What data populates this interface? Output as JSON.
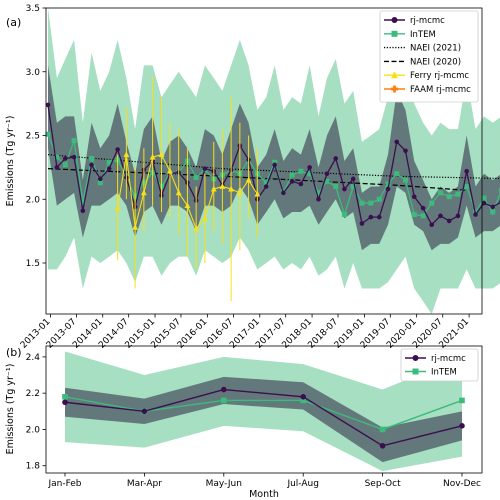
{
  "chart_data": [
    {
      "type": "line",
      "panel_label": "(a)",
      "xlabel": "",
      "ylabel": "Emissions (Tg yr⁻¹)",
      "ylim": [
        1.1,
        3.5
      ],
      "x_start": "2012-12-15",
      "x_step_months": 2,
      "x_tick_labels": [
        "2013-01",
        "2013-07",
        "2014-01",
        "2014-07",
        "2015-01",
        "2015-07",
        "2016-01",
        "2016-07",
        "2017-01",
        "2017-07",
        "2018-01",
        "2018-07",
        "2019-01",
        "2019-07",
        "2020-01",
        "2020-07",
        "2021-01"
      ],
      "y_ticks": [
        1.5,
        2.0,
        2.5,
        3.0,
        3.5
      ],
      "y_tick_labels": [
        "1.5",
        "2.0",
        "2.5",
        "3.0",
        "3.5"
      ],
      "legend_position": "top-right",
      "colors": {
        "rj_mcmc": "#3b0f4f",
        "intem": "#3dbb7c",
        "ferry": "#f7e017",
        "faam": "#ff7f0e",
        "outer_band": "#a6dfc2",
        "inner_band": "#5d6f74"
      },
      "series": [
        {
          "name": "rj-mcmc",
          "values": [
            2.74,
            2.25,
            2.32,
            2.33,
            1.91,
            2.27,
            2.16,
            2.24,
            2.39,
            2.17,
            1.94,
            2.23,
            2.3,
            2.03,
            2.2,
            2.21,
            2.13,
            1.99,
            2.24,
            2.22,
            2.11,
            2.23,
            2.42,
            2.31,
            2.0,
            2.1,
            2.27,
            2.05,
            2.14,
            2.12,
            2.25,
            2.0,
            2.2,
            2.32,
            2.08,
            2.16,
            1.81,
            1.86,
            1.86,
            2.08,
            2.45,
            2.38,
            2.02,
            1.93,
            1.8,
            1.87,
            1.83,
            1.87,
            2.22,
            1.88,
            1.97,
            1.94,
            1.98,
            1.92,
            1.85,
            1.85,
            1.67,
            1.78,
            1.99
          ]
        },
        {
          "name": "InTEM",
          "values": [
            2.51,
            2.33,
            2.27,
            2.46,
            1.98,
            2.32,
            2.13,
            2.29,
            2.31,
            2.17,
            2.02,
            2.13,
            2.21,
            2.1,
            2.2,
            2.21,
            2.3,
            2.17,
            2.23,
            2.16,
            2.19,
            2.23,
            2.2,
            2.31,
            2.2,
            2.13,
            2.29,
            2.06,
            2.19,
            2.22,
            2.2,
            2.05,
            2.14,
            2.1,
            1.88,
            2.1,
            1.97,
            1.97,
            2.0,
            2.12,
            2.2,
            2.15,
            1.88,
            1.87,
            1.97,
            2.05,
            2.02,
            2.04,
            2.1,
            1.9,
            2.01,
            1.9,
            2.07,
            1.98,
            1.9,
            1.89,
            1.8,
            1.79,
            2.19
          ]
        },
        {
          "name": "NAEI (2021)",
          "style": "dotted",
          "points": [
            [
              0,
              2.35
            ],
            [
              20,
              2.24
            ],
            [
              40,
              2.18
            ],
            [
              54,
              2.16
            ]
          ]
        },
        {
          "name": "NAEI (2020)",
          "style": "dashed",
          "points": [
            [
              0,
              2.24
            ],
            [
              20,
              2.18
            ],
            [
              40,
              2.11
            ],
            [
              48,
              2.07
            ]
          ]
        },
        {
          "name": "Ferry rj-mcmc",
          "points": [
            [
              8,
              1.93
            ],
            [
              9,
              2.35
            ],
            [
              10,
              1.78
            ],
            [
              11,
              2.05
            ],
            [
              12,
              2.33
            ],
            [
              13,
              2.35
            ],
            [
              14,
              2.22
            ],
            [
              15,
              2.05
            ],
            [
              16,
              1.95
            ],
            [
              17,
              1.77
            ],
            [
              18,
              1.85
            ],
            [
              19,
              2.08
            ],
            [
              20,
              2.1
            ],
            [
              21,
              2.08
            ],
            [
              22,
              2.05
            ],
            [
              23,
              2.15
            ],
            [
              24,
              2.04
            ]
          ],
          "err_lo": [
            1.52,
            2.0,
            1.3,
            1.75,
            1.95,
            1.9,
            1.85,
            1.72,
            1.55,
            1.45,
            1.5,
            1.75,
            1.65,
            1.2,
            1.6,
            1.85,
            1.7
          ],
          "err_hi": [
            2.35,
            2.72,
            2.25,
            2.4,
            2.96,
            2.8,
            2.6,
            2.55,
            2.4,
            2.1,
            2.2,
            2.45,
            2.55,
            2.8,
            2.6,
            2.5,
            2.4
          ]
        },
        {
          "name": "FAAM rj-mcmc",
          "points": []
        }
      ],
      "band_inner": {
        "lower": [
          2.4,
          1.95,
          2.0,
          2.05,
          1.7,
          1.95,
          1.95,
          2.0,
          2.05,
          1.95,
          1.7,
          1.9,
          1.95,
          1.8,
          1.95,
          1.95,
          1.9,
          1.75,
          1.95,
          1.95,
          1.9,
          1.95,
          2.1,
          2.0,
          1.8,
          1.9,
          2.0,
          1.85,
          1.9,
          1.9,
          1.95,
          1.8,
          1.9,
          2.0,
          1.85,
          1.9,
          1.6,
          1.65,
          1.65,
          1.8,
          2.1,
          2.05,
          1.8,
          1.75,
          1.6,
          1.65,
          1.65,
          1.7,
          1.95,
          1.7,
          1.75,
          1.75,
          1.8,
          1.75,
          1.65,
          1.65,
          1.5,
          1.6,
          1.75
        ],
        "upper": [
          3.05,
          2.6,
          2.65,
          2.65,
          2.15,
          2.6,
          2.4,
          2.5,
          2.75,
          2.45,
          2.2,
          2.55,
          2.65,
          2.3,
          2.45,
          2.5,
          2.4,
          2.25,
          2.55,
          2.5,
          2.35,
          2.55,
          2.75,
          2.6,
          2.25,
          2.35,
          2.55,
          2.3,
          2.4,
          2.35,
          2.55,
          2.25,
          2.5,
          2.65,
          2.3,
          2.4,
          2.05,
          2.1,
          2.1,
          2.35,
          2.85,
          2.7,
          2.3,
          2.15,
          2.0,
          2.1,
          2.05,
          2.1,
          2.5,
          2.1,
          2.2,
          2.15,
          2.2,
          2.1,
          2.05,
          2.05,
          1.85,
          1.95,
          2.25
        ]
      },
      "band_outer": {
        "lower": [
          1.45,
          1.45,
          1.55,
          1.7,
          1.3,
          1.55,
          1.5,
          1.55,
          1.6,
          1.5,
          1.35,
          1.55,
          1.55,
          1.4,
          1.5,
          1.55,
          1.55,
          1.4,
          1.6,
          1.55,
          1.5,
          1.55,
          1.7,
          1.6,
          1.45,
          1.5,
          1.55,
          1.45,
          1.5,
          1.45,
          1.55,
          1.4,
          1.45,
          1.55,
          1.3,
          1.5,
          1.3,
          1.3,
          1.3,
          1.35,
          1.45,
          1.55,
          1.3,
          1.2,
          1.1,
          1.3,
          1.3,
          1.3,
          1.45,
          1.3,
          1.3,
          1.3,
          1.35,
          1.3,
          1.3,
          1.3,
          1.3,
          1.35,
          1.45
        ],
        "upper": [
          3.5,
          2.95,
          3.1,
          3.25,
          2.6,
          3.15,
          2.85,
          3.0,
          3.25,
          2.95,
          2.55,
          3.05,
          3.05,
          2.8,
          2.9,
          3.0,
          2.9,
          2.8,
          3.05,
          2.95,
          2.85,
          3.05,
          3.25,
          3.05,
          2.7,
          2.8,
          3.05,
          2.7,
          2.8,
          2.75,
          3.05,
          2.65,
          2.95,
          3.1,
          2.75,
          2.85,
          2.45,
          2.5,
          2.55,
          2.8,
          3.25,
          3.2,
          2.75,
          2.6,
          2.5,
          2.6,
          2.55,
          2.55,
          2.95,
          2.55,
          2.65,
          2.6,
          2.65,
          2.6,
          2.5,
          2.5,
          2.35,
          2.5,
          2.9
        ]
      }
    },
    {
      "type": "line",
      "panel_label": "(b)",
      "xlabel": "Month",
      "ylabel": "Emissions (Tg yr⁻¹)",
      "ylim": [
        1.76,
        2.46
      ],
      "categories": [
        "Jan-Feb",
        "Mar-Apr",
        "May-Jun",
        "Jul-Aug",
        "Sep-Oct",
        "Nov-Dec"
      ],
      "y_ticks": [
        1.8,
        2.0,
        2.2,
        2.4
      ],
      "y_tick_labels": [
        "1.8",
        "2.0",
        "2.2",
        "2.4"
      ],
      "legend_position": "top-right",
      "series": [
        {
          "name": "rj-mcmc",
          "values": [
            2.15,
            2.1,
            2.22,
            2.18,
            1.91,
            2.02
          ]
        },
        {
          "name": "InTEM",
          "values": [
            2.18,
            2.1,
            2.16,
            2.16,
            2.0,
            2.16
          ]
        }
      ],
      "band_inner": {
        "lower": [
          2.07,
          2.03,
          2.14,
          2.11,
          1.82,
          1.94
        ],
        "upper": [
          2.23,
          2.17,
          2.29,
          2.26,
          2.01,
          2.1
        ]
      },
      "band_outer": {
        "lower": [
          1.93,
          1.9,
          2.02,
          1.99,
          1.77,
          1.85
        ],
        "upper": [
          2.43,
          2.3,
          2.4,
          2.36,
          2.22,
          2.4
        ]
      }
    }
  ]
}
